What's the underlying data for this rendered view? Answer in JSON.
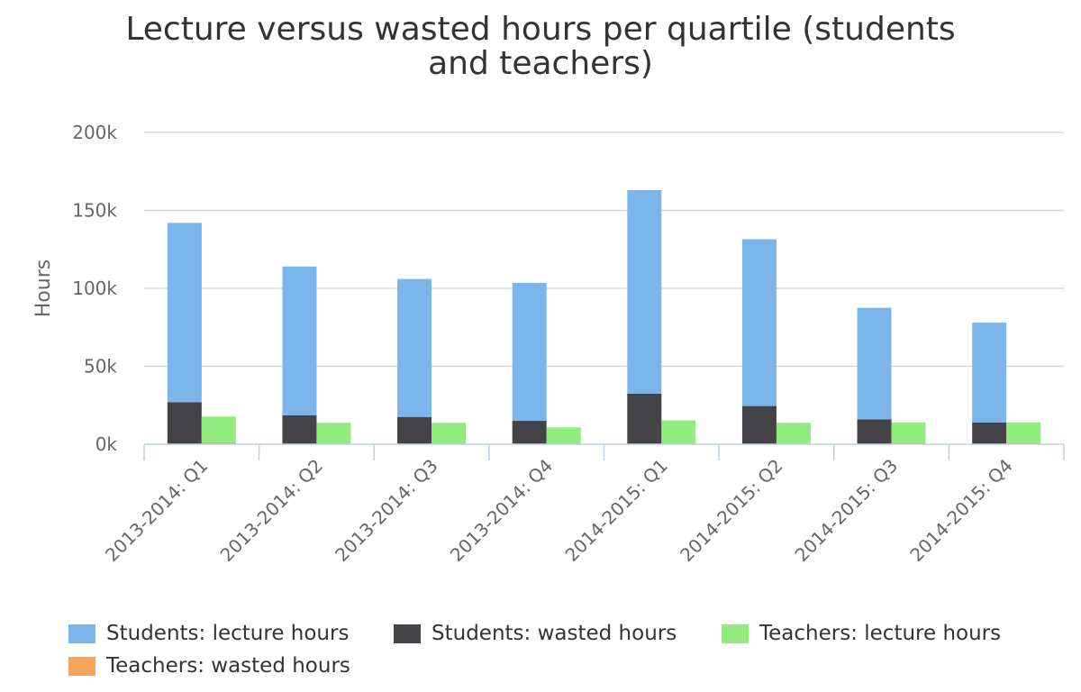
{
  "chart_data": {
    "type": "bar",
    "title": "Lecture versus wasted hours per quartile (students and teachers)",
    "ylabel": "Hours",
    "xlabel": "",
    "ylim": [
      0,
      200000
    ],
    "yticks": [
      "0k",
      "50k",
      "100k",
      "150k",
      "200k"
    ],
    "ytick_values": [
      0,
      50000,
      100000,
      150000,
      200000
    ],
    "categories": [
      "2013-2014: Q1",
      "2013-2014: Q2",
      "2013-2014: Q3",
      "2013-2014: Q4",
      "2014-2015: Q1",
      "2014-2015: Q2",
      "2014-2015: Q3",
      "2014-2015: Q4"
    ],
    "stacks": [
      {
        "name": "students",
        "series": [
          {
            "name": "Students: wasted hours",
            "color": "#434348",
            "values": [
              27000,
              18500,
              17500,
              15000,
              32500,
              24500,
              16000,
              14000
            ]
          },
          {
            "name": "Students: lecture hours",
            "color": "#7cb5ec",
            "values": [
              115000,
              95500,
              88500,
              88500,
              130500,
              107000,
              71500,
              64000
            ]
          }
        ]
      },
      {
        "name": "teachers",
        "series": [
          {
            "name": "Teachers: wasted hours",
            "color": "#f7a35c",
            "values": [
              1200,
              300,
              300,
              300,
              300,
              300,
              1000,
              1000
            ]
          },
          {
            "name": "Teachers: lecture hours",
            "color": "#90ed7d",
            "values": [
              16500,
              13500,
              13500,
              10500,
              15000,
              13500,
              13000,
              13000
            ]
          }
        ]
      }
    ],
    "legend": {
      "position": "bottom",
      "items": [
        {
          "label": "Students: lecture hours",
          "color": "#7cb5ec"
        },
        {
          "label": "Students: wasted hours",
          "color": "#434348"
        },
        {
          "label": "Teachers: lecture hours",
          "color": "#90ed7d"
        },
        {
          "label": "Teachers: wasted hours",
          "color": "#f7a35c"
        }
      ]
    },
    "grid": true
  }
}
